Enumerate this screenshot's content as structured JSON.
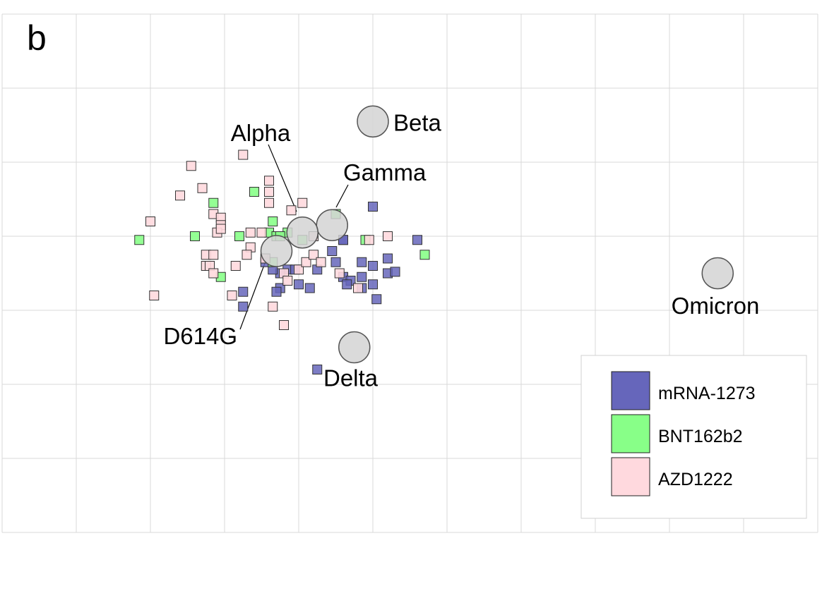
{
  "chart_data": {
    "type": "scatter",
    "panel_label": "b",
    "title": "",
    "xlabel": "",
    "ylabel": "",
    "grid": true,
    "xlim": [
      0,
      11
    ],
    "ylim": [
      0,
      7
    ],
    "legend": {
      "placement": "bottom-right",
      "entries": [
        {
          "name": "mRNA-1273",
          "color": "#6666bb"
        },
        {
          "name": "BNT162b2",
          "color": "#88ff88"
        },
        {
          "name": "AZD1222",
          "color": "#ffd9de"
        }
      ]
    },
    "antigens": [
      {
        "name": "Beta",
        "x": 5.0,
        "y": 5.55
      },
      {
        "name": "Gamma",
        "x": 4.45,
        "y": 4.15
      },
      {
        "name": "Alpha",
        "x": 4.05,
        "y": 4.05
      },
      {
        "name": "D614G",
        "x": 3.7,
        "y": 3.8
      },
      {
        "name": "Delta",
        "x": 4.75,
        "y": 2.5
      },
      {
        "name": "Omicron",
        "x": 9.65,
        "y": 3.5
      }
    ],
    "series": [
      {
        "name": "mRNA-1273",
        "color": "#6666bb",
        "points": [
          [
            5.0,
            4.4
          ],
          [
            5.6,
            3.95
          ],
          [
            4.6,
            3.95
          ],
          [
            4.85,
            3.65
          ],
          [
            5.0,
            3.6
          ],
          [
            5.2,
            3.7
          ],
          [
            5.2,
            3.5
          ],
          [
            5.3,
            3.52
          ],
          [
            4.45,
            3.8
          ],
          [
            4.5,
            3.65
          ],
          [
            4.6,
            3.45
          ],
          [
            4.7,
            3.4
          ],
          [
            4.85,
            3.45
          ],
          [
            4.85,
            3.3
          ],
          [
            5.0,
            3.35
          ],
          [
            4.65,
            3.35
          ],
          [
            5.05,
            3.15
          ],
          [
            4.25,
            3.55
          ],
          [
            4.15,
            3.3
          ],
          [
            4.0,
            3.35
          ],
          [
            3.85,
            3.55
          ],
          [
            3.95,
            3.55
          ],
          [
            3.75,
            3.5
          ],
          [
            3.65,
            3.55
          ],
          [
            3.55,
            3.65
          ],
          [
            3.75,
            3.3
          ],
          [
            3.7,
            3.25
          ],
          [
            3.25,
            3.25
          ],
          [
            3.25,
            3.05
          ],
          [
            4.25,
            2.2
          ],
          [
            4.6,
            3.95
          ]
        ]
      },
      {
        "name": "BNT162b2",
        "color": "#88ff88",
        "points": [
          [
            1.85,
            3.95
          ],
          [
            2.6,
            4.0
          ],
          [
            2.85,
            4.45
          ],
          [
            2.95,
            3.45
          ],
          [
            3.2,
            4.0
          ],
          [
            3.4,
            4.6
          ],
          [
            3.6,
            4.05
          ],
          [
            3.65,
            4.2
          ],
          [
            3.7,
            4.0
          ],
          [
            3.85,
            4.05
          ],
          [
            3.75,
            4.0
          ],
          [
            4.05,
            3.95
          ],
          [
            4.5,
            4.3
          ],
          [
            4.9,
            3.95
          ],
          [
            5.7,
            3.75
          ],
          [
            3.65,
            3.65
          ]
        ]
      },
      {
        "name": "AZD1222",
        "color": "#ffd9de",
        "points": [
          [
            2.55,
            4.95
          ],
          [
            3.25,
            5.1
          ],
          [
            2.4,
            4.55
          ],
          [
            2.7,
            4.65
          ],
          [
            2.0,
            4.2
          ],
          [
            2.85,
            4.3
          ],
          [
            2.95,
            4.25
          ],
          [
            2.95,
            4.15
          ],
          [
            2.9,
            4.05
          ],
          [
            2.95,
            4.1
          ],
          [
            2.75,
            3.75
          ],
          [
            2.85,
            3.75
          ],
          [
            2.75,
            3.6
          ],
          [
            2.8,
            3.6
          ],
          [
            2.85,
            3.5
          ],
          [
            3.15,
            3.6
          ],
          [
            3.35,
            4.05
          ],
          [
            3.35,
            3.85
          ],
          [
            3.5,
            4.05
          ],
          [
            3.6,
            4.6
          ],
          [
            3.6,
            4.75
          ],
          [
            3.6,
            4.45
          ],
          [
            3.9,
            4.35
          ],
          [
            4.05,
            4.45
          ],
          [
            4.2,
            4.0
          ],
          [
            3.3,
            3.75
          ],
          [
            3.55,
            3.7
          ],
          [
            3.8,
            3.5
          ],
          [
            4.0,
            3.55
          ],
          [
            4.1,
            3.65
          ],
          [
            4.2,
            3.75
          ],
          [
            4.3,
            3.65
          ],
          [
            4.55,
            3.5
          ],
          [
            4.8,
            3.3
          ],
          [
            4.95,
            3.95
          ],
          [
            5.2,
            4.0
          ],
          [
            3.1,
            3.2
          ],
          [
            3.65,
            3.05
          ],
          [
            3.8,
            2.8
          ],
          [
            2.05,
            3.2
          ],
          [
            3.85,
            3.4
          ]
        ]
      }
    ]
  }
}
